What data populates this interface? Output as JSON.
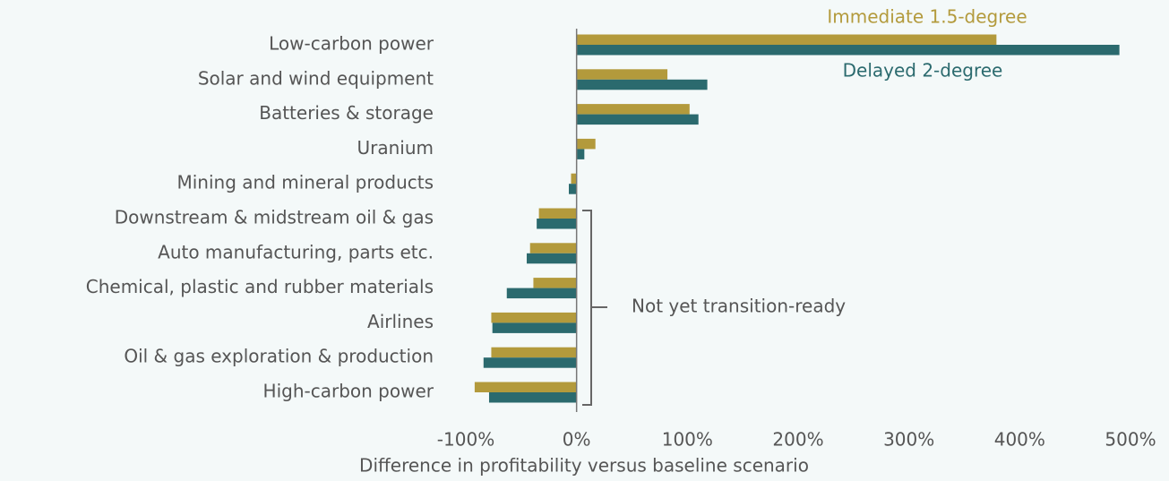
{
  "chart_data": {
    "type": "hbar",
    "categories": [
      "Low-carbon power",
      "Solar and wind equipment",
      "Batteries & storage",
      "Uranium",
      "Mining and mineral products",
      "Downstream & midstream oil & gas",
      "Auto manufacturing, parts etc.",
      "Chemical, plastic and rubber materials",
      "Airlines",
      "Oil & gas exploration & production",
      "High-carbon power"
    ],
    "series": [
      {
        "name": "Immediate 1.5-degree",
        "color": "#b39a3c",
        "values": [
          379,
          82,
          102,
          17,
          -5,
          -34,
          -42,
          -39,
          -77,
          -77,
          -92
        ]
      },
      {
        "name": "Delayed 2-degree",
        "color": "#2b6a6e",
        "values": [
          490,
          118,
          110,
          7,
          -7,
          -36,
          -45,
          -63,
          -76,
          -84,
          -79
        ]
      }
    ],
    "xlim": [
      -100,
      500
    ],
    "xticks": [
      {
        "value": -100,
        "label": "-100%"
      },
      {
        "value": 0,
        "label": "0%"
      },
      {
        "value": 100,
        "label": "100%"
      },
      {
        "value": 200,
        "label": "200%"
      },
      {
        "value": 300,
        "label": "300%"
      },
      {
        "value": 400,
        "label": "400%"
      },
      {
        "value": 500,
        "label": "500%"
      }
    ],
    "xlabel": "Difference in profitability versus baseline scenario",
    "annotation": "Not yet transition-ready",
    "grid": false
  }
}
